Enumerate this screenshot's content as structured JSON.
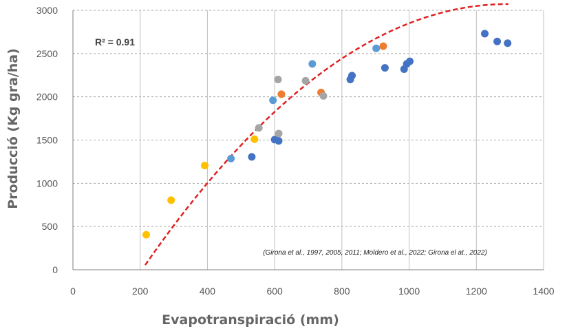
{
  "chart_data": {
    "type": "scatter",
    "xlabel": "Evapotranspiració (mm)",
    "ylabel": "Producció (Kg gra/ha)",
    "xlim": [
      0,
      1400
    ],
    "ylim": [
      0,
      3000
    ],
    "x_ticks": [
      "0",
      "200",
      "400",
      "600",
      "800",
      "1000",
      "1200",
      "1400"
    ],
    "y_ticks": [
      "0",
      "500",
      "1000",
      "1500",
      "2000",
      "2500",
      "3000"
    ],
    "grid": "horizontal dashed",
    "r2_label": "R² = 0.91",
    "citation": "(Girona et al., 1997, 2005, 2011; Moldero et al., 2022; Girona el at., 2022)",
    "series": [
      {
        "color": "#4472C4",
        "points": [
          [
            532,
            1305
          ],
          [
            600,
            1505
          ],
          [
            612,
            1490
          ],
          [
            825,
            2200
          ],
          [
            830,
            2245
          ],
          [
            928,
            2335
          ],
          [
            985,
            2320
          ],
          [
            993,
            2380
          ],
          [
            1002,
            2410
          ],
          [
            1225,
            2730
          ],
          [
            1262,
            2640
          ],
          [
            1293,
            2620
          ]
        ]
      },
      {
        "color": "#ED7D31",
        "points": [
          [
            620,
            2030
          ],
          [
            738,
            2050
          ],
          [
            923,
            2585
          ]
        ]
      },
      {
        "color": "#A5A5A5",
        "points": [
          [
            553,
            1640
          ],
          [
            610,
            2200
          ],
          [
            612,
            1575
          ],
          [
            692,
            2185
          ],
          [
            745,
            2010
          ]
        ]
      },
      {
        "color": "#FFC000",
        "points": [
          [
            218,
            405
          ],
          [
            292,
            805
          ],
          [
            392,
            1205
          ],
          [
            540,
            1510
          ]
        ]
      },
      {
        "color": "#5B9BD5",
        "points": [
          [
            470,
            1285
          ],
          [
            595,
            1960
          ],
          [
            712,
            2380
          ],
          [
            902,
            2560
          ]
        ]
      }
    ],
    "trendline": {
      "type": "polynomial",
      "color": "#E02020",
      "x_range": [
        215,
        1295
      ],
      "coefficients": [
        -1270,
        6.72,
        -0.0026
      ]
    }
  }
}
